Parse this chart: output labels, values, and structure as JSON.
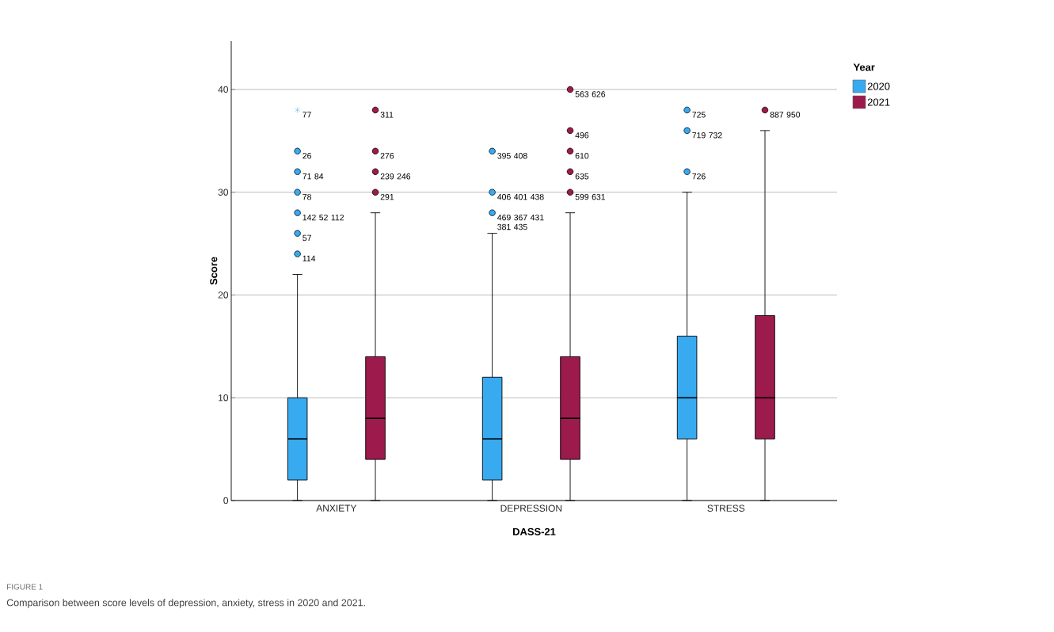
{
  "chart_data": {
    "type": "box",
    "xlabel": "DASS-21",
    "ylabel": "Score",
    "legend_title": "Year",
    "categories": [
      "ANXIETY",
      "DEPRESSION",
      "STRESS"
    ],
    "ylim": [
      0,
      44.7
    ],
    "yticks": [
      0,
      10,
      20,
      30,
      40
    ],
    "grid": "y",
    "legend": "top right",
    "series": [
      {
        "name": "2020",
        "color": "#38aaf0",
        "boxes": [
          {
            "low": 0,
            "q1": 2,
            "median": 6,
            "q3": 10,
            "high": 22,
            "outliers": [
              24,
              26,
              28,
              30,
              32,
              34,
              38
            ]
          },
          {
            "low": 0,
            "q1": 2,
            "median": 6,
            "q3": 12,
            "high": 26,
            "outliers": [
              28,
              30,
              34
            ]
          },
          {
            "low": 0,
            "q1": 6,
            "median": 10,
            "q3": 16,
            "high": 30,
            "outliers": [
              32,
              36,
              38
            ]
          }
        ]
      },
      {
        "name": "2021",
        "color": "#9c1b4c",
        "boxes": [
          {
            "low": 0,
            "q1": 4,
            "median": 8,
            "q3": 14,
            "high": 28,
            "outliers": [
              30,
              32,
              34,
              38
            ]
          },
          {
            "low": 0,
            "q1": 4,
            "median": 8,
            "q3": 14,
            "high": 28,
            "outliers": [
              30,
              32,
              34,
              36,
              40
            ]
          },
          {
            "low": 0,
            "q1": 6,
            "median": 10,
            "q3": 18,
            "high": 36,
            "outliers": [
              38
            ]
          }
        ]
      }
    ],
    "annotations": [
      "77",
      "26",
      "71 84",
      "78",
      "142 52 112",
      "57",
      "114",
      "395 408",
      "406 401 438",
      "469 367 431 381 435",
      "725",
      "719 732",
      "726",
      "311",
      "276",
      "239 246",
      "291",
      "563 626",
      "496",
      "610",
      "635",
      "599 631",
      "887 950",
      "FIGURE 1",
      "Comparison between score levels of depression, anxiety, stress in 2020 and 2021."
    ]
  }
}
